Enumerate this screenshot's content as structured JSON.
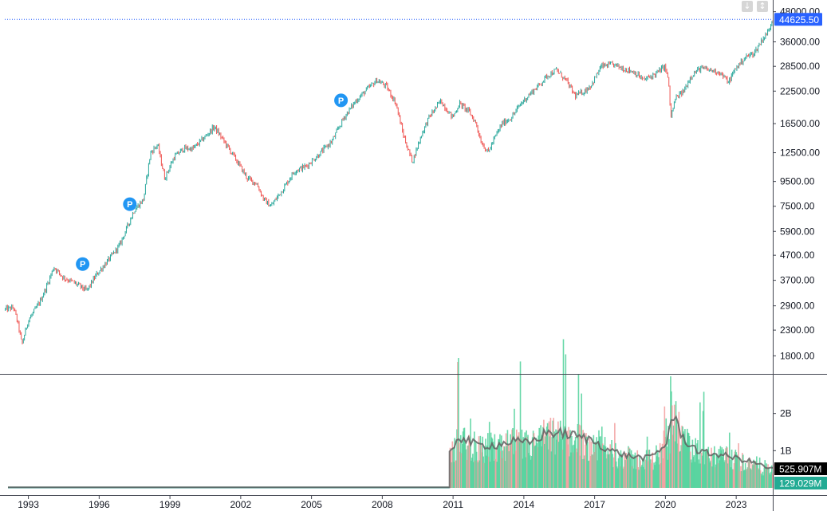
{
  "chart_data": [
    {
      "type": "candlestick",
      "title": "",
      "yscale": "log",
      "ylim": [
        1550,
        50500
      ],
      "xlim": [
        1992.0,
        2024.55
      ],
      "grid": false,
      "y_ticks": [
        "48000.00",
        "36000.00",
        "28500.00",
        "22500.00",
        "16500.00",
        "12500.00",
        "9500.00",
        "7500.00",
        "5900.00",
        "4700.00",
        "3700.00",
        "2900.00",
        "2300.00",
        "1800.00"
      ],
      "x_ticks": [
        "1993",
        "1996",
        "1999",
        "2002",
        "2005",
        "2008",
        "2011",
        "2014",
        "2017",
        "2020",
        "2023"
      ],
      "last_price_label": "44625.50",
      "last_price": 44625.5,
      "colors": {
        "up": "#26a69a",
        "down": "#ef5350",
        "price_line": "#2962ff",
        "marker": "#2196f3"
      },
      "markers": [
        {
          "text": "P",
          "x": 1995.3,
          "y": 4320
        },
        {
          "text": "P",
          "x": 1997.3,
          "y": 7650
        },
        {
          "text": "P",
          "x": 2006.25,
          "y": 20600
        }
      ],
      "price_path": [
        [
          1992.0,
          2800
        ],
        [
          1992.4,
          2850
        ],
        [
          1992.6,
          2400
        ],
        [
          1992.75,
          2000
        ],
        [
          1993.0,
          2500
        ],
        [
          1993.5,
          3000
        ],
        [
          1993.8,
          3500
        ],
        [
          1994.1,
          4200
        ],
        [
          1994.5,
          3800
        ],
        [
          1995.0,
          3600
        ],
        [
          1995.5,
          3350
        ],
        [
          1995.9,
          3900
        ],
        [
          1996.5,
          4600
        ],
        [
          1996.9,
          5200
        ],
        [
          1997.5,
          7200
        ],
        [
          1997.9,
          8000
        ],
        [
          1998.2,
          12500
        ],
        [
          1998.5,
          13500
        ],
        [
          1998.8,
          9800
        ],
        [
          1999.2,
          12000
        ],
        [
          1999.6,
          13000
        ],
        [
          2000.0,
          13000
        ],
        [
          2000.5,
          14500
        ],
        [
          2000.9,
          16000
        ],
        [
          2001.3,
          14000
        ],
        [
          2001.8,
          11800
        ],
        [
          2002.3,
          9800
        ],
        [
          2002.7,
          9300
        ],
        [
          2003.0,
          8000
        ],
        [
          2003.3,
          7500
        ],
        [
          2003.8,
          8800
        ],
        [
          2004.3,
          10500
        ],
        [
          2004.8,
          11000
        ],
        [
          2005.3,
          12200
        ],
        [
          2005.9,
          14000
        ],
        [
          2006.4,
          17500
        ],
        [
          2006.9,
          20500
        ],
        [
          2007.4,
          23000
        ],
        [
          2007.8,
          25000
        ],
        [
          2008.2,
          23500
        ],
        [
          2008.6,
          20000
        ],
        [
          2008.9,
          15000
        ],
        [
          2009.1,
          13000
        ],
        [
          2009.3,
          11500
        ],
        [
          2009.7,
          15000
        ],
        [
          2010.0,
          17500
        ],
        [
          2010.5,
          20500
        ],
        [
          2011.0,
          17500
        ],
        [
          2011.3,
          20000
        ],
        [
          2011.7,
          18500
        ],
        [
          2012.0,
          16500
        ],
        [
          2012.2,
          14000
        ],
        [
          2012.5,
          12500
        ],
        [
          2012.8,
          14500
        ],
        [
          2013.1,
          16500
        ],
        [
          2013.5,
          17500
        ],
        [
          2013.9,
          20000
        ],
        [
          2014.3,
          22000
        ],
        [
          2014.7,
          24000
        ],
        [
          2015.0,
          26000
        ],
        [
          2015.4,
          27500
        ],
        [
          2015.8,
          25000
        ],
        [
          2016.2,
          21500
        ],
        [
          2016.6,
          22500
        ],
        [
          2016.9,
          24000
        ],
        [
          2017.3,
          28500
        ],
        [
          2017.8,
          29000
        ],
        [
          2018.2,
          28000
        ],
        [
          2018.7,
          27000
        ],
        [
          2019.1,
          25000
        ],
        [
          2019.6,
          26500
        ],
        [
          2020.0,
          28500
        ],
        [
          2020.15,
          25000
        ],
        [
          2020.25,
          17500
        ],
        [
          2020.45,
          21000
        ],
        [
          2020.8,
          22500
        ],
        [
          2021.1,
          26000
        ],
        [
          2021.5,
          28000
        ],
        [
          2021.9,
          27500
        ],
        [
          2022.3,
          27000
        ],
        [
          2022.7,
          24500
        ],
        [
          2023.0,
          28000
        ],
        [
          2023.4,
          31000
        ],
        [
          2023.8,
          32500
        ],
        [
          2024.1,
          36500
        ],
        [
          2024.4,
          40000
        ],
        [
          2024.55,
          44625
        ]
      ],
      "volume": {
        "yscale": "linear",
        "ylim": [
          0,
          3000000000
        ],
        "y_ticks": [
          "2B",
          "1B"
        ],
        "volume_label": "129.029M",
        "ma_label": "525.907M",
        "colors": {
          "up": "#26a69a",
          "down": "#ef5350",
          "ma": "#616161"
        },
        "start_year": 2010.85,
        "baseline": 10000000,
        "path": [
          [
            2010.85,
            900000000
          ],
          [
            2011.2,
            1400000000
          ],
          [
            2012.0,
            1150000000
          ],
          [
            2012.8,
            1150000000
          ],
          [
            2013.5,
            1250000000
          ],
          [
            2014.2,
            1200000000
          ],
          [
            2015.0,
            1500000000
          ],
          [
            2015.8,
            1450000000
          ],
          [
            2016.5,
            1350000000
          ],
          [
            2017.0,
            1250000000
          ],
          [
            2017.7,
            1000000000
          ],
          [
            2018.5,
            850000000
          ],
          [
            2019.3,
            800000000
          ],
          [
            2020.0,
            1150000000
          ],
          [
            2020.3,
            2000000000
          ],
          [
            2020.8,
            1300000000
          ],
          [
            2021.5,
            950000000
          ],
          [
            2022.3,
            900000000
          ],
          [
            2023.0,
            800000000
          ],
          [
            2023.7,
            700000000
          ],
          [
            2024.55,
            500000000
          ]
        ]
      }
    }
  ]
}
